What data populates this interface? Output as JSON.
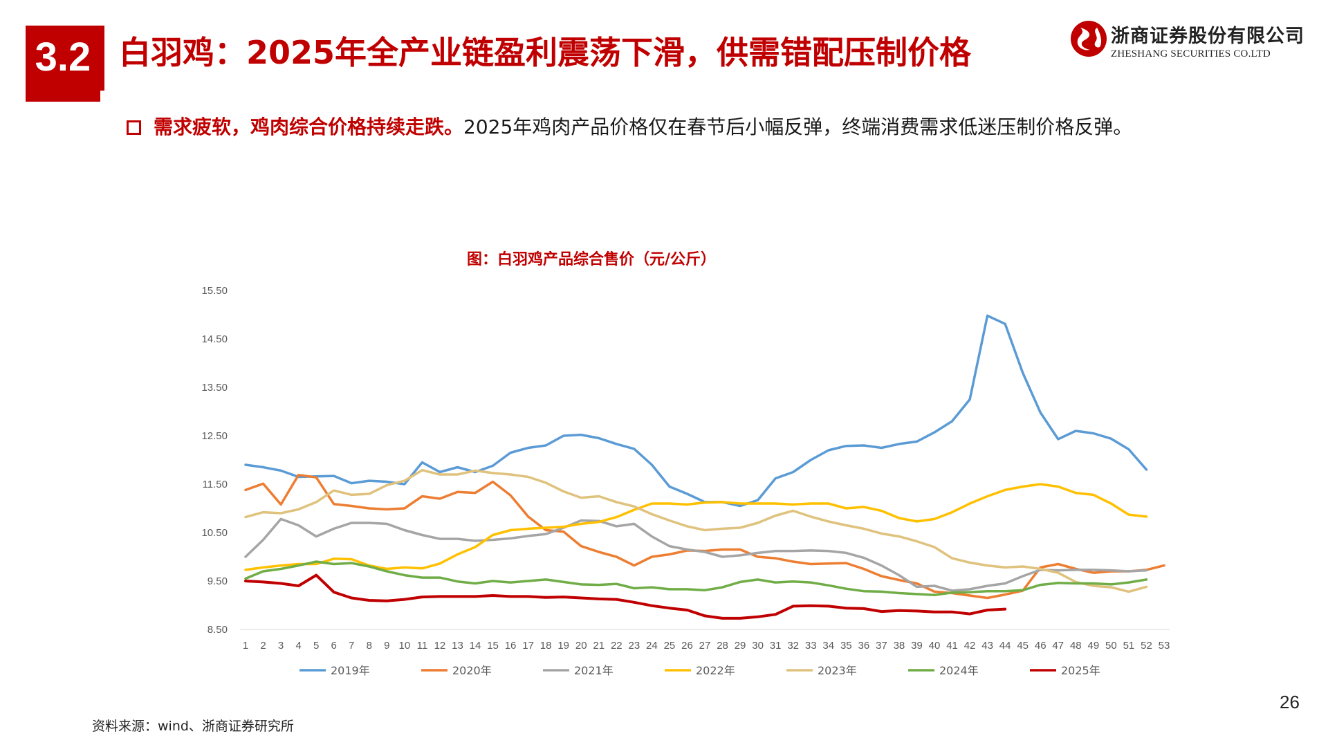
{
  "header": {
    "section_number": "3.2",
    "title": "白羽鸡：2025年全产业链盈利震荡下滑，供需错配压制价格"
  },
  "logo": {
    "name_cn": "浙商证券股份有限公司",
    "name_en": "ZHESHANG SECURITIES CO.LTD"
  },
  "bullet": {
    "bold_text": "需求疲软，鸡肉综合价格持续走跌。",
    "text": "2025年鸡肉产品价格仅在春节后小幅反弹，终端消费需求低迷压制价格反弹。"
  },
  "footer": {
    "source": "资料来源：wind、浙商证券研究所",
    "page_number": "26"
  },
  "colors": {
    "brand_red": "#c00000"
  },
  "chart_data": {
    "type": "line",
    "title": "图：白羽鸡产品综合售价（元/公斤）",
    "xlabel": "",
    "ylabel": "",
    "ylim": [
      8.5,
      15.5
    ],
    "yticks": [
      "15.50",
      "14.50",
      "13.50",
      "12.50",
      "11.50",
      "10.50",
      "9.50",
      "8.50"
    ],
    "ytick_values": [
      15.5,
      14.5,
      13.5,
      12.5,
      11.5,
      10.5,
      9.5,
      8.5
    ],
    "categories": [
      "1",
      "2",
      "3",
      "4",
      "5",
      "6",
      "7",
      "8",
      "9",
      "10",
      "11",
      "12",
      "13",
      "14",
      "15",
      "16",
      "17",
      "18",
      "19",
      "20",
      "21",
      "22",
      "23",
      "24",
      "25",
      "26",
      "27",
      "28",
      "29",
      "30",
      "31",
      "32",
      "33",
      "34",
      "35",
      "36",
      "37",
      "38",
      "39",
      "40",
      "41",
      "42",
      "43",
      "44",
      "45",
      "46",
      "47",
      "48",
      "49",
      "50",
      "51",
      "52",
      "53"
    ],
    "legend_position": "bottom",
    "grid": false,
    "series": [
      {
        "name": "2019年",
        "color": "#5b9bd5",
        "values": [
          11.9,
          11.85,
          11.78,
          11.65,
          11.66,
          11.67,
          11.52,
          11.57,
          11.55,
          11.5,
          11.95,
          11.75,
          11.85,
          11.75,
          11.88,
          12.15,
          12.25,
          12.3,
          12.5,
          12.52,
          12.45,
          12.33,
          12.23,
          11.9,
          11.45,
          11.3,
          11.13,
          11.13,
          11.05,
          11.17,
          11.62,
          11.75,
          12.0,
          12.2,
          12.29,
          12.3,
          12.25,
          12.33,
          12.38,
          12.57,
          12.8,
          13.25,
          14.98,
          14.81,
          13.8,
          12.98,
          12.43,
          12.6,
          12.55,
          12.44,
          12.22,
          11.8,
          null
        ]
      },
      {
        "name": "2020年",
        "color": "#ed7d31",
        "values": [
          11.38,
          11.51,
          11.08,
          11.69,
          11.64,
          11.09,
          11.05,
          11.0,
          10.98,
          11.0,
          11.25,
          11.2,
          11.34,
          11.32,
          11.55,
          11.27,
          10.83,
          10.55,
          10.52,
          10.22,
          10.1,
          10.0,
          9.82,
          10.0,
          10.05,
          10.13,
          10.12,
          10.15,
          10.15,
          10.0,
          9.97,
          9.9,
          9.85,
          9.86,
          9.87,
          9.75,
          9.6,
          9.52,
          9.45,
          9.28,
          9.25,
          9.2,
          9.15,
          9.22,
          9.3,
          9.78,
          9.85,
          9.75,
          9.67,
          9.7,
          9.7,
          9.73,
          9.82
        ]
      },
      {
        "name": "2021年",
        "color": "#a5a5a5",
        "values": [
          10.0,
          10.35,
          10.78,
          10.65,
          10.42,
          10.58,
          10.7,
          10.7,
          10.68,
          10.55,
          10.45,
          10.37,
          10.37,
          10.33,
          10.35,
          10.38,
          10.43,
          10.47,
          10.6,
          10.75,
          10.74,
          10.63,
          10.68,
          10.42,
          10.22,
          10.15,
          10.1,
          10.0,
          10.03,
          10.08,
          10.12,
          10.12,
          10.13,
          10.12,
          10.08,
          9.98,
          9.82,
          9.62,
          9.38,
          9.4,
          9.3,
          9.33,
          9.4,
          9.45,
          9.6,
          9.73,
          9.72,
          9.73,
          9.73,
          9.72,
          9.7,
          9.72,
          null
        ]
      },
      {
        "name": "2022年",
        "color": "#ffc000",
        "values": [
          9.73,
          9.78,
          9.82,
          9.85,
          9.85,
          9.96,
          9.95,
          9.82,
          9.75,
          9.78,
          9.76,
          9.86,
          10.05,
          10.2,
          10.45,
          10.55,
          10.58,
          10.6,
          10.62,
          10.68,
          10.72,
          10.82,
          10.97,
          11.1,
          11.1,
          11.08,
          11.12,
          11.13,
          11.1,
          11.1,
          11.1,
          11.08,
          11.1,
          11.1,
          11.0,
          11.03,
          10.95,
          10.8,
          10.73,
          10.78,
          10.92,
          11.1,
          11.25,
          11.38,
          11.45,
          11.5,
          11.45,
          11.32,
          11.28,
          11.1,
          10.87,
          10.83,
          null
        ]
      },
      {
        "name": "2023年",
        "color": "#dfc27d",
        "values": [
          10.82,
          10.92,
          10.9,
          10.98,
          11.13,
          11.37,
          11.28,
          11.3,
          11.48,
          11.57,
          11.79,
          11.7,
          11.7,
          11.78,
          11.73,
          11.7,
          11.65,
          11.53,
          11.35,
          11.22,
          11.25,
          11.13,
          11.04,
          10.88,
          10.75,
          10.63,
          10.55,
          10.58,
          10.6,
          10.7,
          10.85,
          10.95,
          10.83,
          10.73,
          10.65,
          10.58,
          10.48,
          10.42,
          10.32,
          10.2,
          9.97,
          9.88,
          9.82,
          9.78,
          9.8,
          9.75,
          9.67,
          9.48,
          9.4,
          9.37,
          9.28,
          9.38,
          null
        ]
      },
      {
        "name": "2024年",
        "color": "#70ad47",
        "values": [
          9.55,
          9.7,
          9.75,
          9.82,
          9.9,
          9.85,
          9.87,
          9.8,
          9.7,
          9.62,
          9.57,
          9.57,
          9.49,
          9.45,
          9.5,
          9.47,
          9.5,
          9.53,
          9.48,
          9.43,
          9.42,
          9.44,
          9.35,
          9.37,
          9.33,
          9.33,
          9.31,
          9.37,
          9.48,
          9.53,
          9.47,
          9.49,
          9.47,
          9.41,
          9.34,
          9.29,
          9.28,
          9.25,
          9.23,
          9.21,
          9.26,
          9.27,
          9.29,
          9.29,
          9.31,
          9.42,
          9.46,
          9.45,
          9.45,
          9.43,
          9.47,
          9.53,
          null
        ]
      },
      {
        "name": "2025年",
        "color": "#c00000",
        "values": [
          9.5,
          9.48,
          9.45,
          9.4,
          9.62,
          9.27,
          9.15,
          9.1,
          9.09,
          9.12,
          9.17,
          9.18,
          9.18,
          9.18,
          9.2,
          9.18,
          9.18,
          9.16,
          9.17,
          9.15,
          9.13,
          9.12,
          9.06,
          8.99,
          8.94,
          8.9,
          8.78,
          8.73,
          8.73,
          8.76,
          8.81,
          8.98,
          8.99,
          8.98,
          8.94,
          8.93,
          8.87,
          8.89,
          8.88,
          8.86,
          8.86,
          8.82,
          8.9,
          8.92,
          null,
          null,
          null,
          null,
          null,
          null,
          null,
          null,
          null
        ]
      }
    ]
  }
}
